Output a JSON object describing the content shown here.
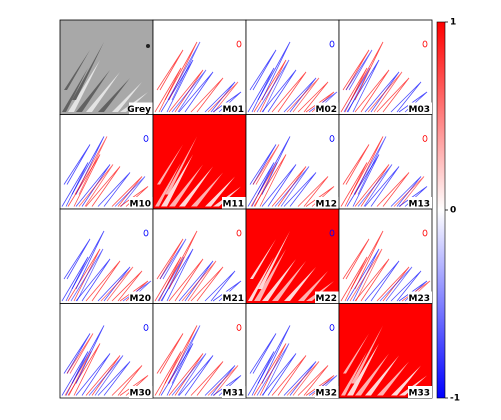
{
  "panels": [
    "Grey",
    "M01",
    "M02",
    "M03",
    "M10",
    "M11",
    "M12",
    "M13",
    "M20",
    "M21",
    "M22",
    "M23",
    "M30",
    "M31",
    "M32",
    "M33"
  ],
  "colorbar": {
    "lim": [
      -1,
      1
    ],
    "ticks": [
      1,
      0,
      -1
    ],
    "colormap": [
      "#0000ff",
      "#ffffff",
      "#ff0000"
    ]
  }
}
